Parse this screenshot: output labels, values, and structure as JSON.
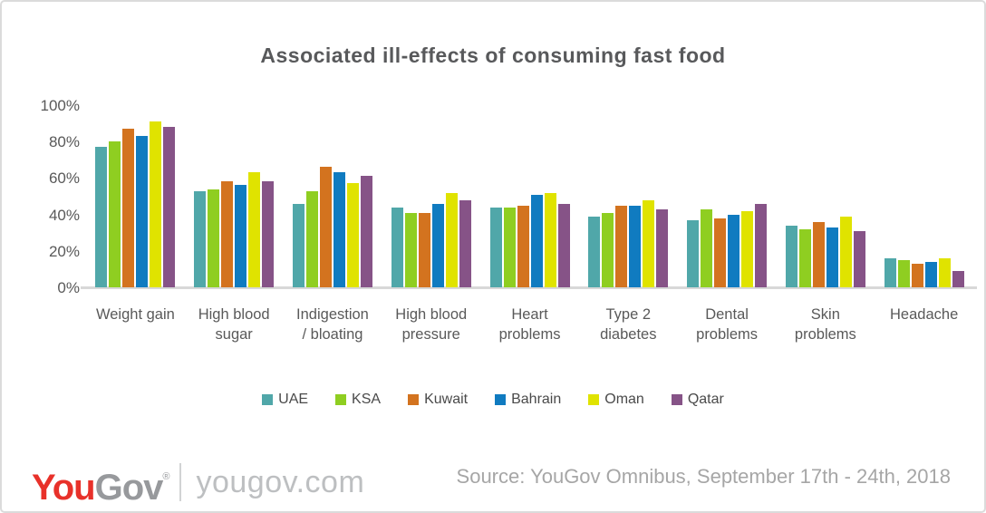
{
  "chart_data": {
    "type": "bar",
    "title": "Associated ill-effects of consuming fast food",
    "categories": [
      "Weight gain",
      "High blood sugar",
      "Indigestion / bloating",
      "High blood pressure",
      "Heart problems",
      "Type 2 diabetes",
      "Dental problems",
      "Skin problems",
      "Headache"
    ],
    "categories_display": [
      [
        "Weight gain"
      ],
      [
        "High blood",
        "sugar"
      ],
      [
        "Indigestion",
        "/ bloating"
      ],
      [
        "High blood",
        "pressure"
      ],
      [
        "Heart",
        "problems"
      ],
      [
        "Type 2",
        "diabetes"
      ],
      [
        "Dental",
        "problems"
      ],
      [
        "Skin",
        "problems"
      ],
      [
        "Headache"
      ]
    ],
    "series": [
      {
        "name": "UAE",
        "color": "#50A7A9",
        "values": [
          77,
          53,
          46,
          44,
          44,
          39,
          37,
          34,
          16
        ]
      },
      {
        "name": "KSA",
        "color": "#8FCE21",
        "values": [
          80,
          54,
          53,
          41,
          44,
          41,
          43,
          32,
          15
        ]
      },
      {
        "name": "Kuwait",
        "color": "#D3731F",
        "values": [
          87,
          58,
          66,
          41,
          45,
          45,
          38,
          36,
          13
        ]
      },
      {
        "name": "Bahrain",
        "color": "#107BC0",
        "values": [
          83,
          56,
          63,
          46,
          51,
          45,
          40,
          33,
          14
        ]
      },
      {
        "name": "Oman",
        "color": "#E0E300",
        "values": [
          91,
          63,
          57,
          52,
          52,
          48,
          42,
          39,
          16
        ]
      },
      {
        "name": "Qatar",
        "color": "#865387",
        "values": [
          88,
          58,
          61,
          48,
          46,
          43,
          46,
          31,
          9
        ]
      }
    ],
    "ylim": [
      0,
      100
    ],
    "ytick_values": [
      100,
      80,
      60,
      40,
      20,
      0
    ],
    "ytick_labels": [
      "100%",
      "80%",
      "60%",
      "40%",
      "20%",
      "0%"
    ],
    "grid": false,
    "legend_position": "bottom-center"
  },
  "footer": {
    "logo_you": "You",
    "logo_gov": "Gov",
    "logo_reg": "®",
    "logo_domain": "yougov.com",
    "source": "Source: YouGov Omnibus, September 17th - 24th, 2018"
  },
  "colors": {
    "title_text": "#58595B",
    "axis_text": "#595959",
    "axis_line": "#D8D8D8",
    "frame_border": "#DBDBDB",
    "logo_red": "#E8312A",
    "logo_gray": "#97999C",
    "domain_gray": "#BDBFC1",
    "source_text": "#A6A6A6"
  }
}
